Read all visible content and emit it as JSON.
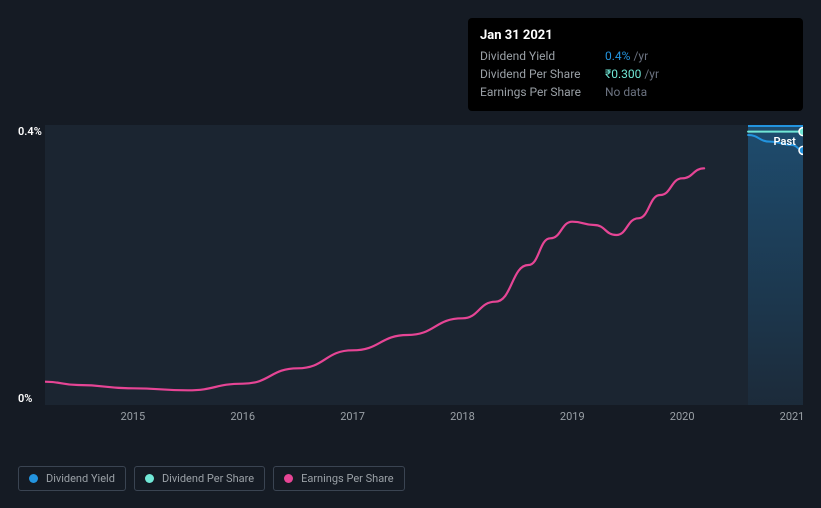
{
  "tooltip": {
    "date": "Jan 31 2021",
    "rows": [
      {
        "label": "Dividend Yield",
        "value": "0.4%",
        "value_color": "#2394df",
        "suffix": "/yr"
      },
      {
        "label": "Dividend Per Share",
        "value": "₹0.300",
        "value_color": "#71e7d6",
        "suffix": "/yr"
      },
      {
        "label": "Earnings Per Share",
        "value": "No data",
        "value_color": "#6b7280",
        "suffix": ""
      }
    ]
  },
  "chart": {
    "type": "line",
    "background_color": "#1b2531",
    "page_background": "#151b24",
    "xlim": [
      2014.2,
      2021.1
    ],
    "ylim": [
      0,
      0.42
    ],
    "y_ticks": [
      {
        "value": 0,
        "label": "0%"
      },
      {
        "value": 0.4,
        "label": "0.4%"
      }
    ],
    "x_ticks": [
      {
        "value": 2015,
        "label": "2015"
      },
      {
        "value": 2016,
        "label": "2016"
      },
      {
        "value": 2017,
        "label": "2017"
      },
      {
        "value": 2018,
        "label": "2018"
      },
      {
        "value": 2019,
        "label": "2019"
      },
      {
        "value": 2020,
        "label": "2020"
      },
      {
        "value": 2021,
        "label": "2021"
      }
    ],
    "past_label": "Past",
    "shade_start_x": 2020.6,
    "series": {
      "earnings": {
        "color": "#e64595",
        "line_width": 2.2,
        "points": [
          [
            2014.2,
            0.035
          ],
          [
            2014.5,
            0.03
          ],
          [
            2015.0,
            0.025
          ],
          [
            2015.5,
            0.022
          ],
          [
            2016.0,
            0.032
          ],
          [
            2016.5,
            0.055
          ],
          [
            2017.0,
            0.082
          ],
          [
            2017.5,
            0.105
          ],
          [
            2018.0,
            0.13
          ],
          [
            2018.3,
            0.155
          ],
          [
            2018.6,
            0.21
          ],
          [
            2018.8,
            0.25
          ],
          [
            2019.0,
            0.275
          ],
          [
            2019.2,
            0.27
          ],
          [
            2019.4,
            0.255
          ],
          [
            2019.6,
            0.28
          ],
          [
            2019.8,
            0.315
          ],
          [
            2020.0,
            0.34
          ],
          [
            2020.2,
            0.355
          ]
        ]
      },
      "dividend_yield_short": {
        "color": "#2394df",
        "line_width": 2,
        "points": [
          [
            2020.6,
            0.405
          ],
          [
            2020.8,
            0.395
          ],
          [
            2021.0,
            0.39
          ],
          [
            2021.1,
            0.382
          ]
        ]
      },
      "dividend_per_share_short": {
        "color": "#71e7d6",
        "line_width": 2,
        "points": [
          [
            2020.6,
            0.41
          ],
          [
            2021.1,
            0.41
          ]
        ]
      }
    },
    "end_markers": [
      {
        "x": 2021.1,
        "y": 0.41,
        "fill": "#71e7d6"
      },
      {
        "x": 2021.1,
        "y": 0.382,
        "fill": "#2394df"
      }
    ]
  },
  "legend": [
    {
      "label": "Dividend Yield",
      "color": "#2394df"
    },
    {
      "label": "Dividend Per Share",
      "color": "#71e7d6"
    },
    {
      "label": "Earnings Per Share",
      "color": "#e64595"
    }
  ]
}
